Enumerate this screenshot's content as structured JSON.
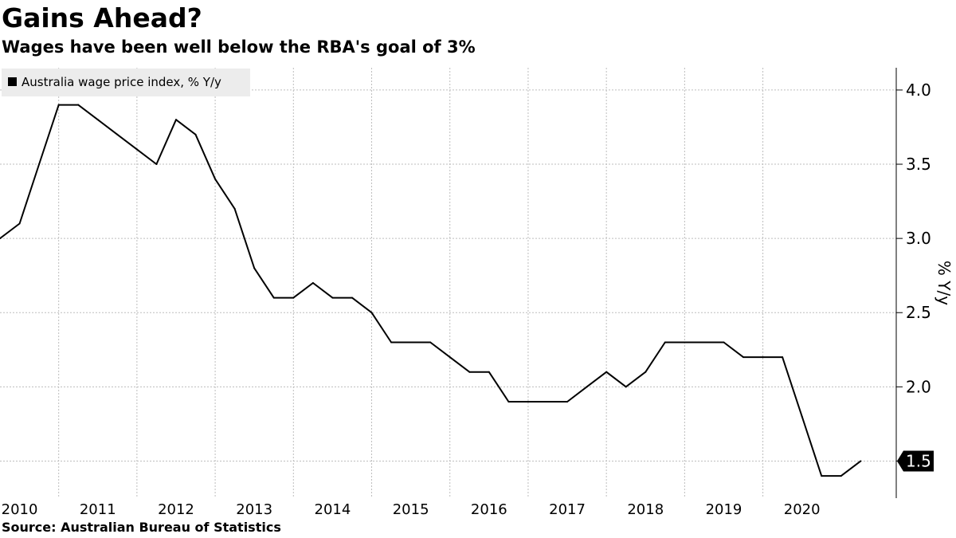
{
  "title": "Gains Ahead?",
  "subtitle": "Wages have been well below the RBA's goal of 3%",
  "source": "Source:  Australian Bureau of Statistics",
  "chart_data": {
    "type": "line",
    "legend": "Australia wage price index, % Y/y",
    "legend_position": "top-left",
    "ylabel": "% Y/y",
    "y_axis_side": "right",
    "ylim": [
      1.25,
      4.15
    ],
    "yticks": [
      2.0,
      2.5,
      3.0,
      3.5,
      4.0
    ],
    "ytick_labels": [
      "2.0",
      "2.5",
      "3.0",
      "3.5",
      "4.0"
    ],
    "xlim": [
      2009.75,
      2020.95
    ],
    "xticks": [
      2010,
      2011,
      2012,
      2013,
      2014,
      2015,
      2016,
      2017,
      2018,
      2019,
      2020
    ],
    "xtick_labels": [
      "2010",
      "2011",
      "2012",
      "2013",
      "2014",
      "2015",
      "2016",
      "2017",
      "2018",
      "2019",
      "2020"
    ],
    "grid": true,
    "line_color": "#000000",
    "last_value_label": "1.5",
    "series": [
      {
        "name": "Australia wage price index, % Y/y",
        "x": [
          2009.75,
          2010.0,
          2010.25,
          2010.5,
          2010.75,
          2011.0,
          2011.25,
          2011.5,
          2011.75,
          2012.0,
          2012.25,
          2012.5,
          2012.75,
          2013.0,
          2013.25,
          2013.5,
          2013.75,
          2014.0,
          2014.25,
          2014.5,
          2014.75,
          2015.0,
          2015.25,
          2015.5,
          2015.75,
          2016.0,
          2016.25,
          2016.5,
          2016.75,
          2017.0,
          2017.25,
          2017.5,
          2017.75,
          2018.0,
          2018.25,
          2018.5,
          2018.75,
          2019.0,
          2019.25,
          2019.5,
          2019.75,
          2020.0,
          2020.25,
          2020.5,
          2020.75
        ],
        "y": [
          3.0,
          3.1,
          3.5,
          3.9,
          3.9,
          3.8,
          3.7,
          3.6,
          3.5,
          3.8,
          3.7,
          3.4,
          3.2,
          2.8,
          2.6,
          2.6,
          2.7,
          2.6,
          2.6,
          2.5,
          2.3,
          2.3,
          2.3,
          2.2,
          2.1,
          2.1,
          1.9,
          1.9,
          1.9,
          1.9,
          2.0,
          2.1,
          2.0,
          2.1,
          2.3,
          2.3,
          2.3,
          2.3,
          2.2,
          2.2,
          2.2,
          1.8,
          1.4,
          1.4,
          1.5
        ]
      }
    ]
  }
}
